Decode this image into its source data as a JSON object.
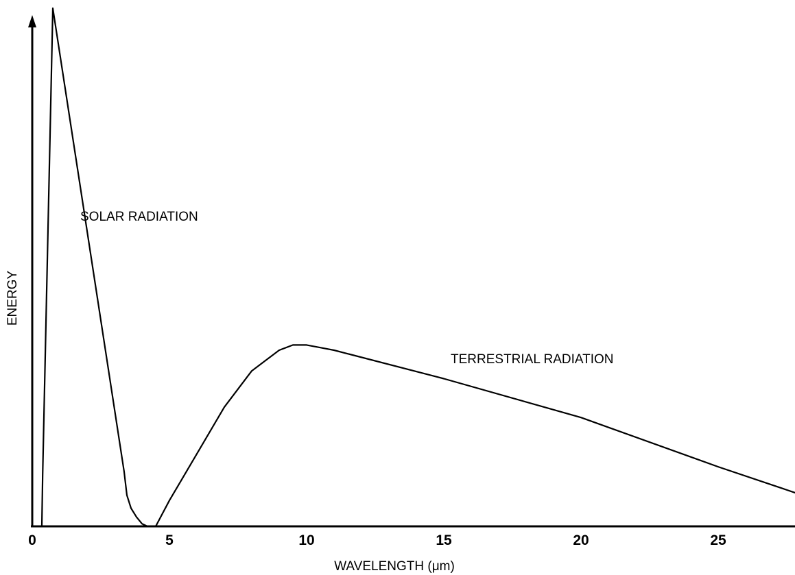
{
  "chart_data": {
    "type": "line",
    "title": "",
    "xlabel": "WAVELENGTH (μm)",
    "ylabel": "ENERGY",
    "xlim": [
      0,
      27.8
    ],
    "ylim": [
      0,
      1.0
    ],
    "x_ticks": [
      "0",
      "5",
      "10",
      "15",
      "20",
      "25"
    ],
    "x_tick_values": [
      0,
      5,
      10,
      15,
      20,
      25
    ],
    "y_ticks": [],
    "grid": false,
    "legend": "none",
    "series": [
      {
        "x": [
          0.35,
          0.38,
          0.75,
          3.35,
          3.45,
          3.6,
          3.8,
          4.0,
          4.2,
          4.5
        ],
        "y": [
          0.0,
          0.1,
          1.0,
          0.105,
          0.06,
          0.035,
          0.018,
          0.005,
          0.0,
          0.0
        ]
      },
      {
        "x": [
          4.5,
          5.0,
          6.0,
          7.0,
          8.0,
          9.0,
          9.5,
          10.0,
          10.5,
          11.0,
          15.0,
          20.0,
          25.0,
          27.8
        ],
        "y": [
          0.0,
          0.05,
          0.14,
          0.23,
          0.3,
          0.34,
          0.35,
          0.35,
          0.345,
          0.34,
          0.285,
          0.21,
          0.115,
          0.065
        ]
      }
    ],
    "annotations": [
      {
        "text": "SOLAR RADIATION",
        "x": 1.75,
        "y": 0.59
      },
      {
        "text": "TERRESTRIAL RADIATION",
        "x": 15.25,
        "y": 0.315
      }
    ]
  }
}
